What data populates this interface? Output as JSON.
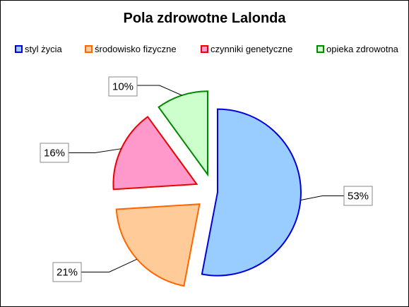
{
  "chart_data": {
    "type": "pie",
    "title": "Pola zdrowotne Lalonda",
    "legend_position": "top",
    "exploded": true,
    "slices": [
      {
        "label": "styl życia",
        "value": 53,
        "value_label": "53%",
        "fill": "#99ccff",
        "stroke": "#0000dd"
      },
      {
        "label": "środowisko fizyczne",
        "value": 21,
        "value_label": "21%",
        "fill": "#ffcc99",
        "stroke": "#ff6600"
      },
      {
        "label": "czynniki genetyczne",
        "value": 16,
        "value_label": "16%",
        "fill": "#ff99cc",
        "stroke": "#ee0000"
      },
      {
        "label": "opieka zdrowotna",
        "value": 10,
        "value_label": "10%",
        "fill": "#ccffcc",
        "stroke": "#008800"
      }
    ]
  }
}
